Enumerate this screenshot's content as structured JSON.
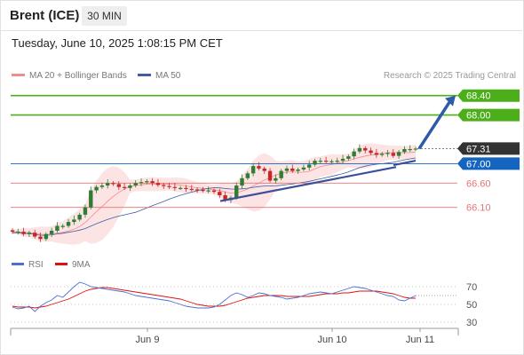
{
  "header": {
    "title": "Brent (ICE)",
    "timeframe": "30 MIN"
  },
  "timestamp": "Tuesday, June 10, 2025 1:08:15 PM CET",
  "legend": {
    "items": [
      {
        "label": "MA 20 + Bollinger Bands",
        "color": "#f28b8b"
      },
      {
        "label": "MA 50",
        "color": "#3b5fa0"
      }
    ]
  },
  "credit": "Research © 2025 Trading Central",
  "colors": {
    "up": "#2e7d32",
    "down": "#c62828",
    "resistance": "#4caf1a",
    "support": "#e57373",
    "current": "#333333",
    "pivot": "#1565c0",
    "arrow": "#2f5aa8",
    "bb_fill": "#fde4e4"
  },
  "chart_data": [
    {
      "type": "candlestick",
      "xlabels": [
        "Jun 9",
        "Jun 10",
        "Jun 11"
      ],
      "ylim": [
        65.2,
        68.65
      ],
      "levels": [
        {
          "value": 68.4,
          "label": "68.40",
          "kind": "resistance"
        },
        {
          "value": 68.0,
          "label": "68.00",
          "kind": "resistance"
        },
        {
          "value": 67.31,
          "label": "67.31",
          "kind": "current"
        },
        {
          "value": 67.0,
          "label": "67.00",
          "kind": "pivot"
        },
        {
          "value": 66.6,
          "label": "66.60",
          "kind": "support"
        },
        {
          "value": 66.1,
          "label": "66.10",
          "kind": "support"
        }
      ],
      "close_series": [
        65.6,
        65.6,
        65.55,
        65.58,
        65.5,
        65.45,
        65.55,
        65.62,
        65.72,
        65.72,
        65.8,
        65.85,
        65.95,
        66.1,
        66.45,
        66.52,
        66.55,
        66.6,
        66.58,
        66.52,
        66.5,
        66.55,
        66.6,
        66.62,
        66.64,
        66.6,
        66.56,
        66.54,
        66.52,
        66.5,
        66.5,
        66.48,
        66.47,
        66.46,
        66.45,
        66.45,
        66.42,
        66.35,
        66.25,
        66.3,
        66.55,
        66.7,
        66.8,
        66.95,
        66.9,
        66.85,
        66.65,
        66.7,
        66.85,
        66.9,
        66.85,
        66.88,
        66.92,
        66.98,
        67.06,
        67.06,
        67.05,
        67.05,
        67.06,
        67.1,
        67.15,
        67.25,
        67.32,
        67.27,
        67.22,
        67.18,
        67.2,
        67.22,
        67.16,
        67.24,
        67.3,
        67.3,
        67.31
      ],
      "trendlines": [
        {
          "from": [
            "Jun 9",
            66.23
          ],
          "to": [
            "Jun 10",
            66.93
          ]
        },
        {
          "from": [
            "Jun 10",
            66.97
          ],
          "to": [
            "Jun 11",
            67.06
          ]
        }
      ]
    },
    {
      "type": "line",
      "title": "RSI",
      "series": [
        {
          "name": "RSI",
          "color": "#4a70d0"
        },
        {
          "name": "9MA",
          "color": "#e01010"
        }
      ],
      "y_ticks": [
        70,
        50,
        30
      ],
      "ylim": [
        22,
        82
      ],
      "rsi": [
        47,
        45,
        46,
        48,
        42,
        48,
        52,
        55,
        60,
        58,
        64,
        70,
        75,
        73,
        70,
        69,
        68,
        67,
        66,
        65,
        64,
        62,
        60,
        59,
        58,
        57,
        56,
        55,
        54,
        52,
        50,
        48,
        47,
        46,
        46,
        46,
        47,
        50,
        55,
        60,
        63,
        61,
        58,
        60,
        63,
        62,
        60,
        59,
        58,
        56,
        57,
        58,
        60,
        62,
        63,
        64,
        63,
        62,
        64,
        66,
        68,
        70,
        69,
        68,
        66,
        64,
        62,
        60,
        59,
        55,
        54,
        57,
        60
      ],
      "ma9": [
        48,
        47,
        47,
        47,
        46,
        47,
        48,
        50,
        52,
        54,
        56,
        59,
        62,
        65,
        67,
        68,
        69,
        69,
        68,
        67,
        66,
        65,
        64,
        63,
        62,
        61,
        60,
        59,
        58,
        57,
        56,
        54,
        52,
        50,
        49,
        48,
        48,
        48,
        49,
        51,
        53,
        55,
        57,
        58,
        59,
        60,
        60,
        60,
        60,
        59,
        59,
        59,
        59,
        59,
        60,
        61,
        62,
        62,
        62,
        63,
        63,
        64,
        65,
        65,
        65,
        65,
        64,
        63,
        62,
        60,
        58,
        57,
        57
      ]
    }
  ]
}
